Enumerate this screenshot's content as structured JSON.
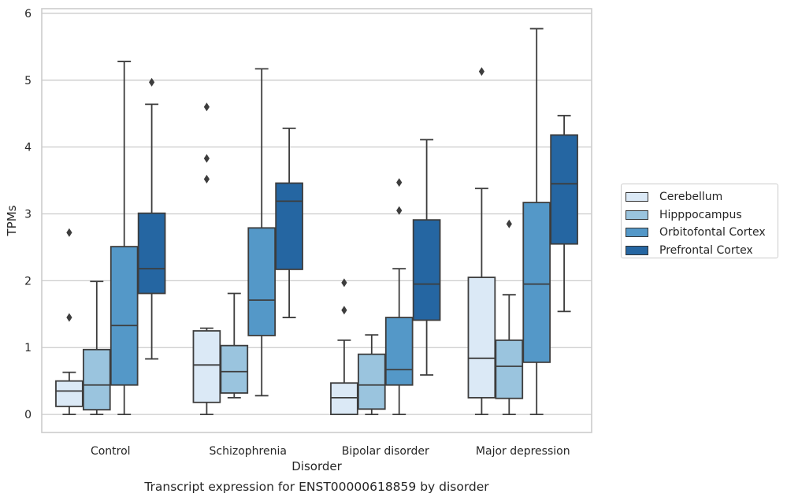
{
  "chart_data": {
    "type": "box",
    "title": "Transcript expression for ENST00000618859 by disorder",
    "xlabel": "Disorder",
    "ylabel": "TPMs",
    "ylim": [
      -0.27,
      6.07
    ],
    "yticks": [
      0,
      1,
      2,
      3,
      4,
      5,
      6
    ],
    "grid": "horizontal",
    "legend_position": "right",
    "categories": [
      "Control",
      "Schizophrenia",
      "Bipolar disorder",
      "Major depression"
    ],
    "series": [
      {
        "name": "Cerebellum",
        "color": "#dbe9f6",
        "boxes": [
          {
            "whislo": 0.0,
            "q1": 0.12,
            "med": 0.35,
            "q3": 0.5,
            "whishi": 0.63,
            "fliers": [
              1.45,
              2.72
            ]
          },
          {
            "whislo": 0.0,
            "q1": 0.18,
            "med": 0.74,
            "q3": 1.25,
            "whishi": 1.29,
            "fliers": [
              3.52,
              3.83,
              4.6
            ]
          },
          {
            "whislo": 0.0,
            "q1": 0.0,
            "med": 0.25,
            "q3": 0.47,
            "whishi": 1.11,
            "fliers": [
              1.56,
              1.97
            ]
          },
          {
            "whislo": 0.0,
            "q1": 0.25,
            "med": 0.84,
            "q3": 2.05,
            "whishi": 3.38,
            "fliers": [
              5.13
            ]
          }
        ]
      },
      {
        "name": "Hipppocampus",
        "color": "#9ac4de",
        "boxes": [
          {
            "whislo": 0.0,
            "q1": 0.07,
            "med": 0.44,
            "q3": 0.97,
            "whishi": 1.99,
            "fliers": []
          },
          {
            "whislo": 0.25,
            "q1": 0.32,
            "med": 0.64,
            "q3": 1.03,
            "whishi": 1.81,
            "fliers": []
          },
          {
            "whislo": 0.0,
            "q1": 0.08,
            "med": 0.44,
            "q3": 0.9,
            "whishi": 1.19,
            "fliers": []
          },
          {
            "whislo": 0.0,
            "q1": 0.24,
            "med": 0.72,
            "q3": 1.11,
            "whishi": 1.79,
            "fliers": [
              2.85
            ]
          }
        ]
      },
      {
        "name": "Orbitofontal Cortex",
        "color": "#5498c8",
        "boxes": [
          {
            "whislo": 0.0,
            "q1": 0.44,
            "med": 1.33,
            "q3": 2.51,
            "whishi": 5.28,
            "fliers": []
          },
          {
            "whislo": 0.28,
            "q1": 1.18,
            "med": 1.71,
            "q3": 2.79,
            "whishi": 5.17,
            "fliers": []
          },
          {
            "whislo": 0.0,
            "q1": 0.44,
            "med": 0.67,
            "q3": 1.45,
            "whishi": 2.18,
            "fliers": [
              3.05,
              3.47
            ]
          },
          {
            "whislo": 0.0,
            "q1": 0.78,
            "med": 1.95,
            "q3": 3.17,
            "whishi": 5.77,
            "fliers": []
          }
        ]
      },
      {
        "name": "Prefrontal Cortex",
        "color": "#2566a2",
        "boxes": [
          {
            "whislo": 0.83,
            "q1": 1.81,
            "med": 2.18,
            "q3": 3.01,
            "whishi": 4.64,
            "fliers": [
              4.97
            ]
          },
          {
            "whislo": 1.45,
            "q1": 2.17,
            "med": 3.19,
            "q3": 3.46,
            "whishi": 4.28,
            "fliers": []
          },
          {
            "whislo": 0.59,
            "q1": 1.41,
            "med": 1.95,
            "q3": 2.91,
            "whishi": 4.11,
            "fliers": []
          },
          {
            "whislo": 1.54,
            "q1": 2.55,
            "med": 3.45,
            "q3": 4.18,
            "whishi": 4.47,
            "fliers": []
          }
        ]
      }
    ]
  }
}
